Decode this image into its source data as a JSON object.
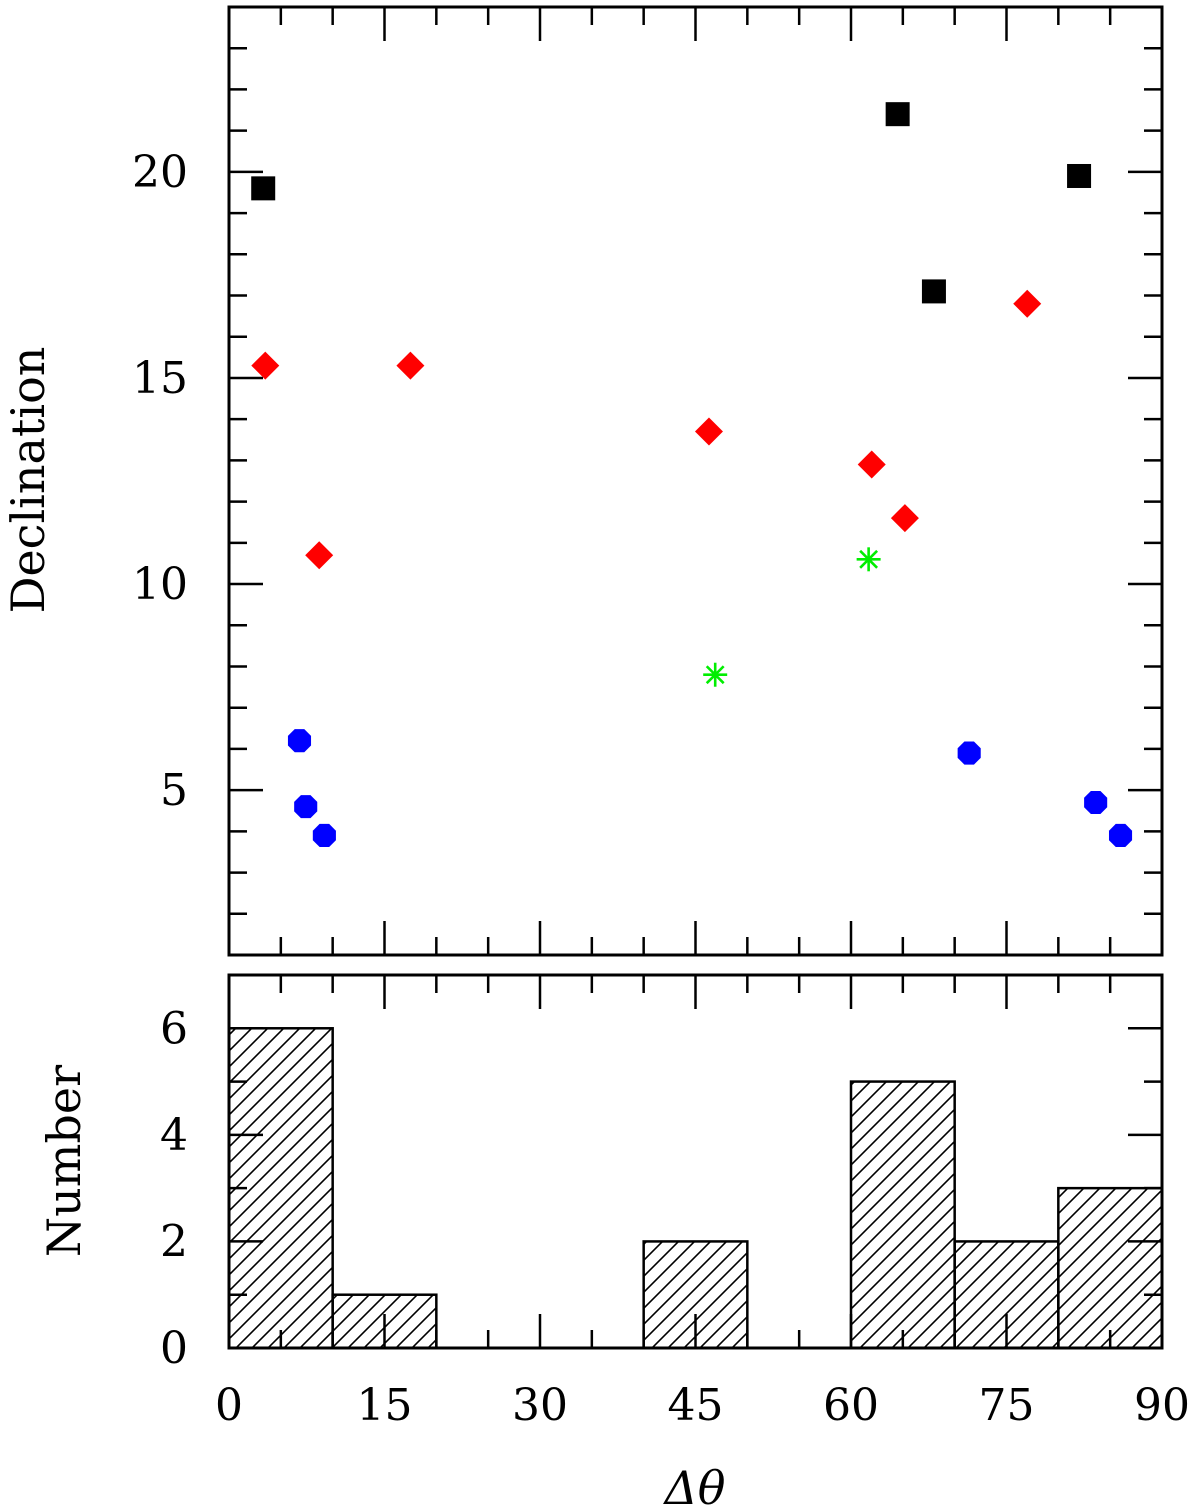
{
  "chart_data": [
    {
      "type": "scatter",
      "xlabel": "",
      "ylabel": "Declination",
      "xlim": [
        0,
        90
      ],
      "ylim": [
        1,
        24
      ],
      "yticks": [
        5,
        10,
        15,
        20
      ],
      "series": [
        {
          "marker": "square",
          "color": "#000000",
          "points": [
            [
              3.3,
              19.6
            ],
            [
              64.5,
              21.4
            ],
            [
              68.0,
              17.1
            ],
            [
              82.0,
              19.9
            ]
          ]
        },
        {
          "marker": "diamond",
          "color": "#ff0000",
          "points": [
            [
              3.5,
              15.3
            ],
            [
              8.7,
              10.7
            ],
            [
              17.5,
              15.3
            ],
            [
              46.3,
              13.7
            ],
            [
              62.0,
              12.9
            ],
            [
              65.2,
              11.6
            ],
            [
              77.0,
              16.8
            ]
          ]
        },
        {
          "marker": "asterisk",
          "color": "#00ee00",
          "points": [
            [
              46.9,
              7.8
            ],
            [
              61.7,
              10.6
            ]
          ]
        },
        {
          "marker": "circle",
          "color": "#0000ff",
          "points": [
            [
              6.8,
              6.2
            ],
            [
              7.4,
              4.6
            ],
            [
              9.2,
              3.9
            ],
            [
              71.4,
              5.9
            ],
            [
              83.6,
              4.7
            ],
            [
              86.0,
              3.9
            ]
          ]
        }
      ]
    },
    {
      "type": "bar",
      "xlabel": "Δθ",
      "ylabel": "Number",
      "xlim": [
        0,
        90
      ],
      "ylim": [
        0,
        7
      ],
      "xticks": [
        0,
        15,
        30,
        45,
        60,
        75,
        90
      ],
      "yticks": [
        0,
        2,
        4,
        6
      ],
      "bins": [
        [
          0,
          10
        ],
        [
          10,
          20
        ],
        [
          20,
          30
        ],
        [
          30,
          40
        ],
        [
          40,
          50
        ],
        [
          50,
          60
        ],
        [
          60,
          70
        ],
        [
          70,
          80
        ],
        [
          80,
          90
        ]
      ],
      "values": [
        6,
        1,
        0,
        0,
        2,
        0,
        5,
        2,
        3
      ],
      "fill": "hatched"
    }
  ]
}
